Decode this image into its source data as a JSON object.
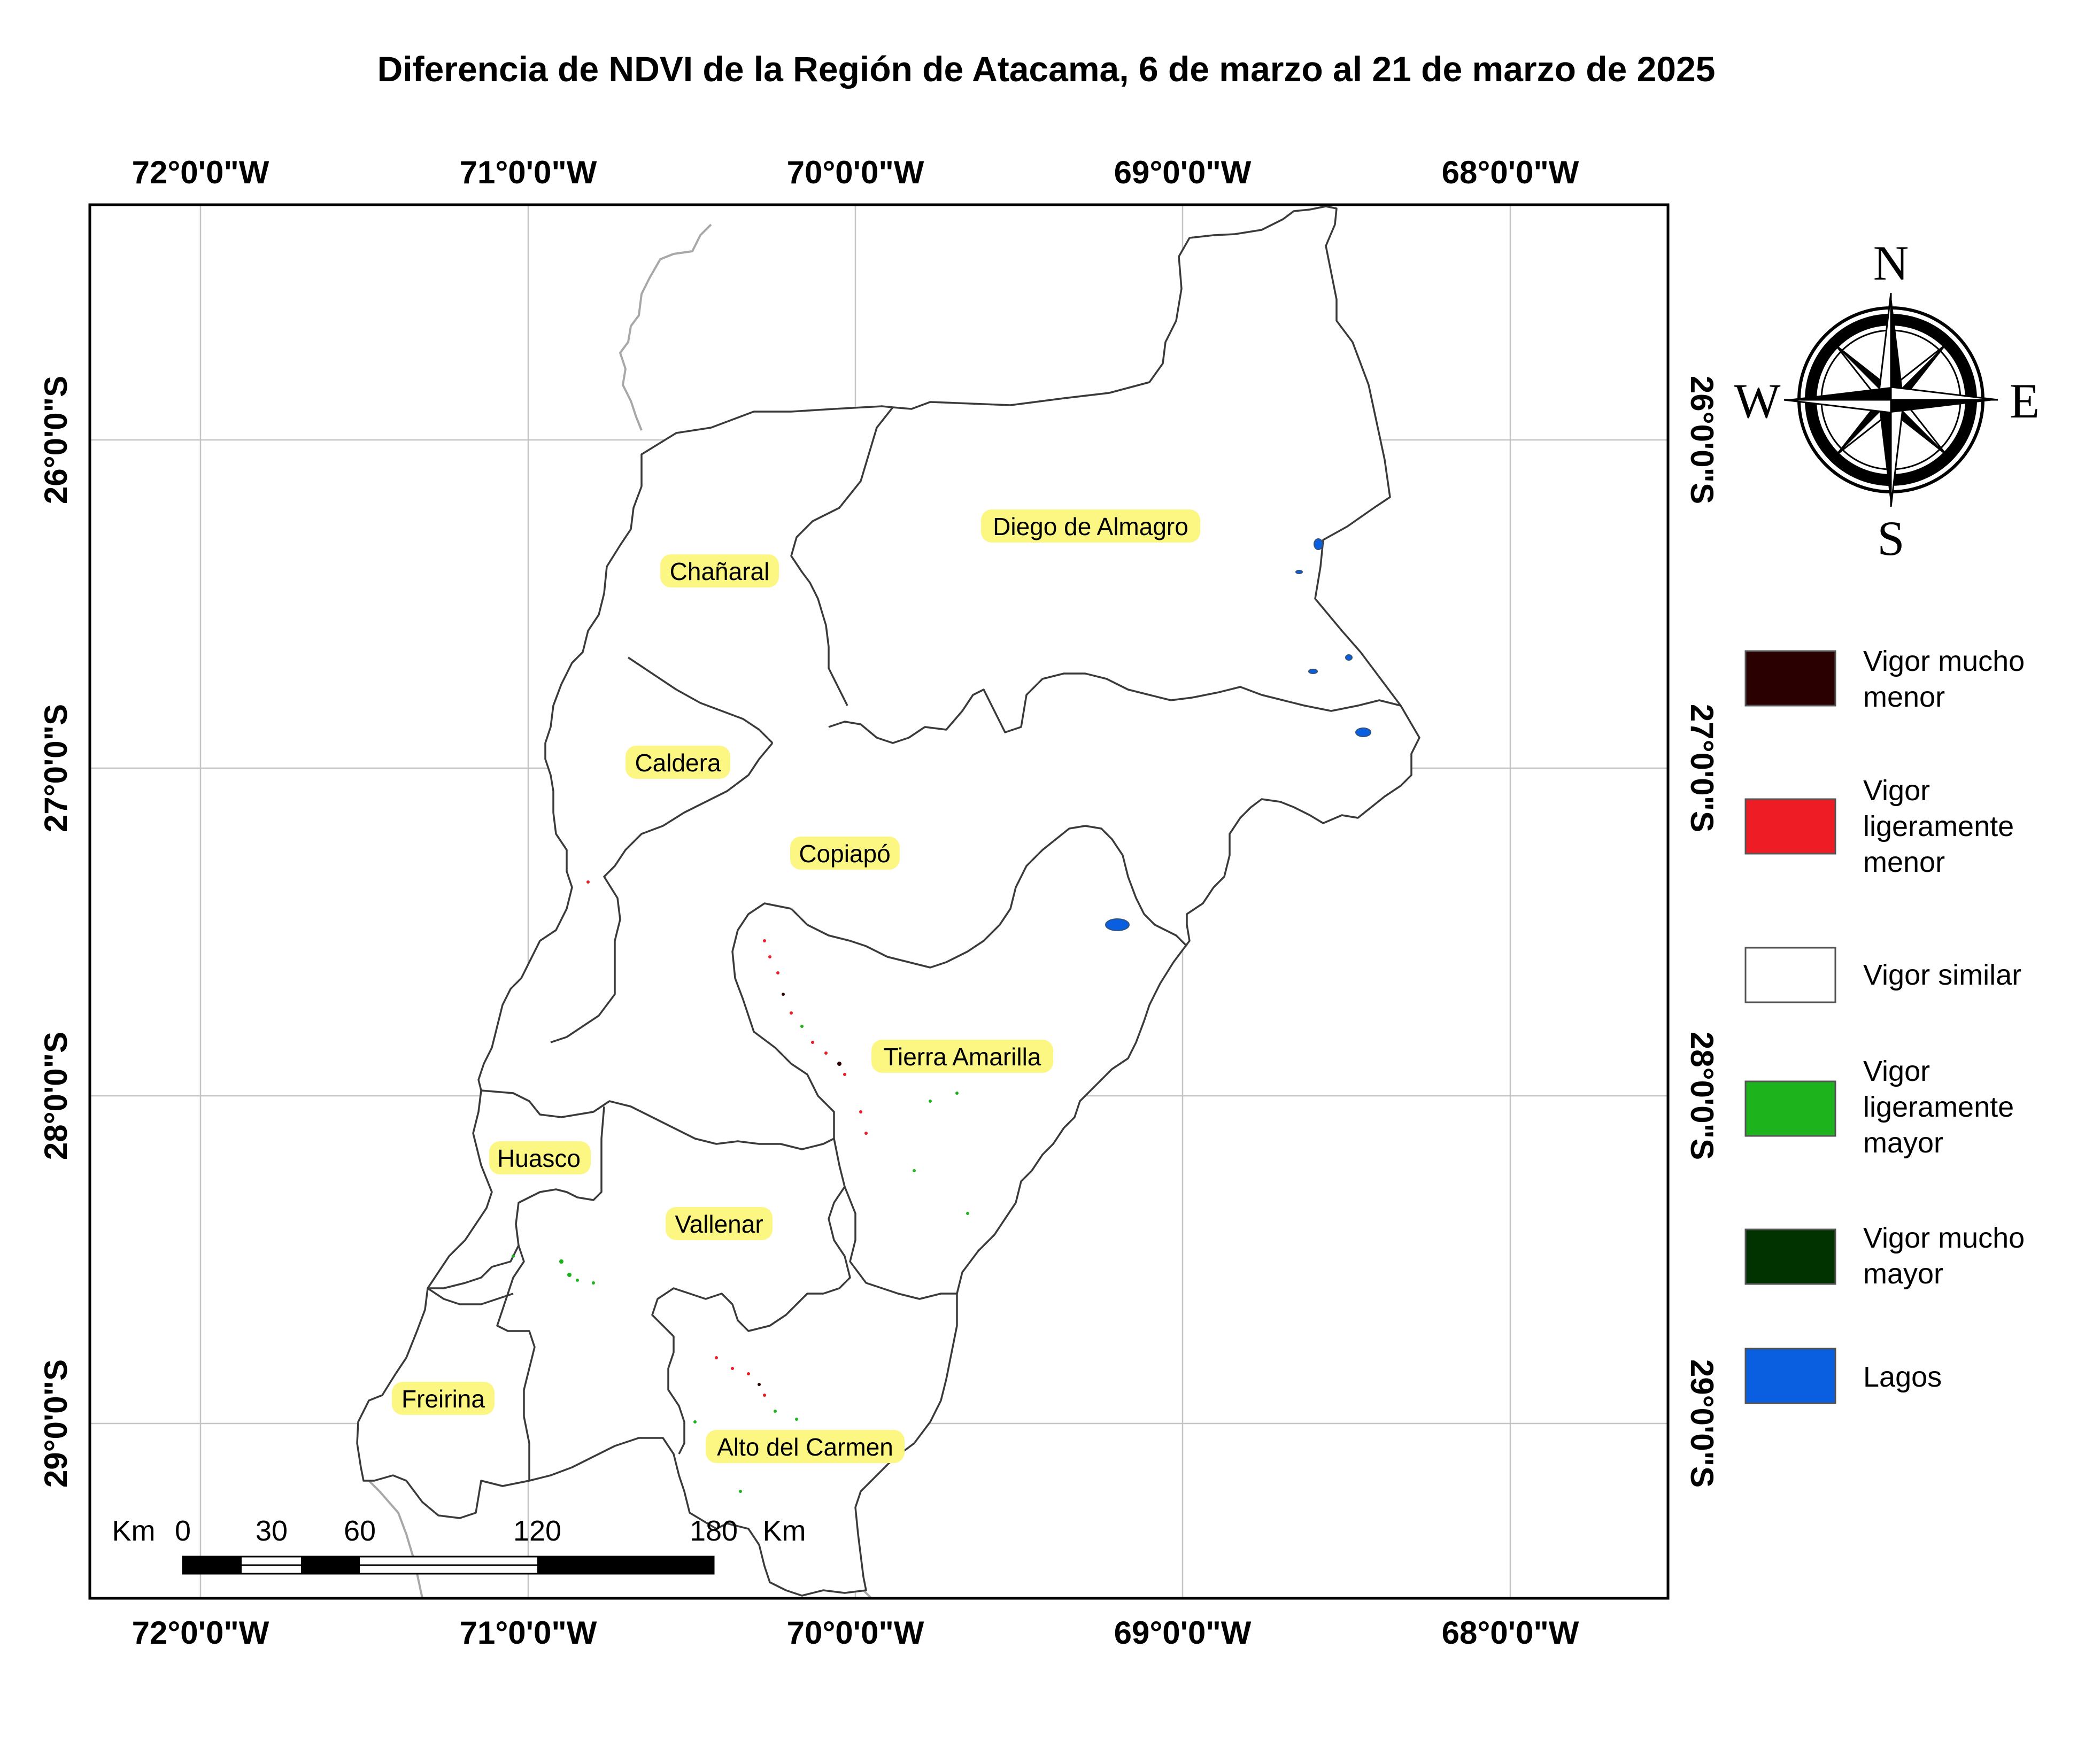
{
  "title": "Diferencia de NDVI de la Región de Atacama, 6 de marzo al 21 de marzo de 2025",
  "longitude_labels": [
    "72°0'0\"W",
    "71°0'0\"W",
    "70°0'0\"W",
    "69°0'0\"W",
    "68°0'0\"W"
  ],
  "latitude_labels": [
    "26°0'0\"S",
    "27°0'0\"S",
    "28°0'0\"S",
    "29°0'0\"S"
  ],
  "communes": [
    "Diego de Almagro",
    "Chañaral",
    "Caldera",
    "Copiapó",
    "Tierra Amarilla",
    "Huasco",
    "Vallenar",
    "Freirina",
    "Alto del Carmen"
  ],
  "compass": {
    "north": "N",
    "south": "S",
    "east": "E",
    "west": "W"
  },
  "legend": {
    "items": [
      {
        "label_lines": [
          "Vigor mucho",
          "menor"
        ],
        "color": "#2a0000"
      },
      {
        "label_lines": [
          "Vigor",
          "ligeramente",
          "menor"
        ],
        "color": "#ee1c25"
      },
      {
        "label_lines": [
          "Vigor similar"
        ],
        "color": "#ffffff"
      },
      {
        "label_lines": [
          "Vigor",
          "ligeramente",
          "mayor"
        ],
        "color": "#1db31d"
      },
      {
        "label_lines": [
          "Vigor mucho",
          "mayor"
        ],
        "color": "#003300"
      },
      {
        "label_lines": [
          "Lagos"
        ],
        "color": "#0a5fe0"
      }
    ]
  },
  "scale_bar": {
    "unit_left": "Km",
    "unit_right": "Km",
    "ticks": [
      "0",
      "30",
      "60",
      "120",
      "180"
    ]
  }
}
